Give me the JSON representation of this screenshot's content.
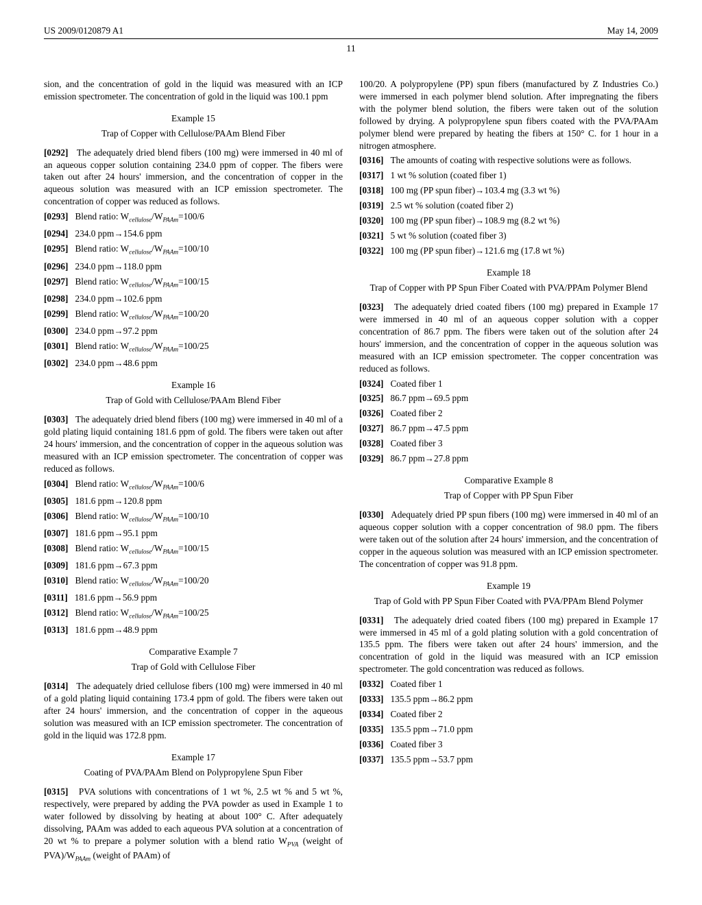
{
  "header": {
    "patent_number": "US 2009/0120879 A1",
    "date": "May 14, 2009",
    "page_number": "11"
  },
  "left": {
    "intro": "sion, and the concentration of gold in the liquid was measured with an ICP emission spectrometer. The concentration of gold in the liquid was 100.1 ppm",
    "ex15": {
      "title": "Example 15",
      "subtitle": "Trap of Copper with Cellulose/PAAm Blend Fiber",
      "p0292_num": "[0292]",
      "p0292": "The adequately dried blend fibers (100 mg) were immersed in 40 ml of an aqueous copper solution containing 234.0 ppm of copper. The fibers were taken out after 24 hours' immersion, and the concentration of copper in the aqueous solution was measured with an ICP emission spectrometer. The concentration of copper was reduced as follows.",
      "lines": [
        {
          "num": "[0293]",
          "pre": "Blend ratio: W",
          "sub1": "cellulose",
          "mid": "/W",
          "sub2": "PAAm",
          "post": "=100/6"
        },
        {
          "num": "[0294]",
          "text": "234.0 ppm→154.6 ppm"
        },
        {
          "num": "[0295]",
          "pre": "Blend ratio: W",
          "sub1": "cellulose",
          "mid": "/W",
          "sub2": "PAAm",
          "post": "=100/10"
        },
        {
          "num": "[0296]",
          "text": "234.0 ppm→118.0 ppm"
        },
        {
          "num": "[0297]",
          "pre": "Blend ratio: W",
          "sub1": "cellulose",
          "mid": "/W",
          "sub2": "PAAm",
          "post": "=100/15"
        },
        {
          "num": "[0298]",
          "text": "234.0 ppm→102.6 ppm"
        },
        {
          "num": "[0299]",
          "pre": "Blend ratio: W",
          "sub1": "cellulose",
          "mid": "/W",
          "sub2": "PAAm",
          "post": "=100/20"
        },
        {
          "num": "[0300]",
          "text": "234.0 ppm→97.2 ppm"
        },
        {
          "num": "[0301]",
          "pre": "Blend ratio: W",
          "sub1": "cellulose",
          "mid": "/W",
          "sub2": "PAAm",
          "post": "=100/25"
        },
        {
          "num": "[0302]",
          "text": "234.0 ppm→48.6 ppm"
        }
      ]
    },
    "ex16": {
      "title": "Example 16",
      "subtitle": "Trap of Gold with Cellulose/PAAm Blend Fiber",
      "p0303_num": "[0303]",
      "p0303": "The adequately dried blend fibers (100 mg) were immersed in 40 ml of a gold plating liquid containing 181.6 ppm of gold. The fibers were taken out after 24 hours' immersion, and the concentration of copper in the aqueous solution was measured with an ICP emission spectrometer. The concentration of copper was reduced as follows.",
      "lines": [
        {
          "num": "[0304]",
          "pre": "Blend ratio: W",
          "sub1": "cellulose",
          "mid": "/W",
          "sub2": "PAAm",
          "post": "=100/6"
        },
        {
          "num": "[0305]",
          "text": "181.6 ppm→120.8 ppm"
        },
        {
          "num": "[0306]",
          "pre": "Blend ratio: W",
          "sub1": "cellulose",
          "mid": "/W",
          "sub2": "PAAm",
          "post": "=100/10"
        },
        {
          "num": "[0307]",
          "text": "181.6 ppm→95.1 ppm"
        },
        {
          "num": "[0308]",
          "pre": "Blend ratio: W",
          "sub1": "cellulose",
          "mid": "/W",
          "sub2": "PAAm",
          "post": "=100/15"
        },
        {
          "num": "[0309]",
          "text": "181.6 ppm→67.3 ppm"
        },
        {
          "num": "[0310]",
          "pre": "Blend ratio: W",
          "sub1": "cellulose",
          "mid": "/W",
          "sub2": "PAAm",
          "post": "=100/20"
        },
        {
          "num": "[0311]",
          "text": "181.6 ppm→56.9 ppm"
        },
        {
          "num": "[0312]",
          "pre": "Blend ratio: W",
          "sub1": "cellulose",
          "mid": "/W",
          "sub2": "PAAm",
          "post": "=100/25"
        },
        {
          "num": "[0313]",
          "text": "181.6 ppm→48.9 ppm"
        }
      ]
    },
    "ce7": {
      "title": "Comparative Example 7",
      "subtitle": "Trap of Gold with Cellulose Fiber",
      "p0314_num": "[0314]",
      "p0314": "The adequately dried cellulose fibers (100 mg) were immersed in 40 ml of a gold plating liquid containing 173.4 ppm of gold. The fibers were taken out after 24 hours' immersion, and the concentration of copper in the aqueous solution was measured with an ICP emission spectrometer. The concentration of gold in the liquid was 172.8 ppm."
    },
    "ex17": {
      "title": "Example 17",
      "subtitle": "Coating of PVA/PAAm Blend on Polypropylene Spun Fiber",
      "p0315_num": "[0315]",
      "p0315_pre": "PVA solutions with concentrations of 1 wt %, 2.5 wt % and 5 wt %, respectively, were prepared by adding the PVA powder as used in Example 1 to water followed by dissolving by heating at about 100° C. After adequately dissolving, PAAm was added to each aqueous PVA solution at a concentration of 20 wt % to prepare a polymer solution with a blend ratio W",
      "p0315_sub1": "PVA",
      "p0315_mid": " (weight of PVA)/W",
      "p0315_sub2": "PAAm",
      "p0315_post": " (weight of PAAm) of"
    }
  },
  "right": {
    "cont": "100/20. A polypropylene (PP) spun fibers (manufactured by Z Industries Co.) were immersed in each polymer blend solution. After impregnating the fibers with the polymer blend solution, the fibers were taken out of the solution followed by drying. A polypropylene spun fibers coated with the PVA/PAAm polymer blend were prepared by heating the fibers at 150° C. for 1 hour in a nitrogen atmosphere.",
    "p0316_num": "[0316]",
    "p0316": "The amounts of coating with respective solutions were as follows.",
    "lines17": [
      {
        "num": "[0317]",
        "text": "1 wt % solution (coated fiber 1)"
      },
      {
        "num": "[0318]",
        "text": "100 mg (PP spun fiber)→103.4 mg (3.3 wt %)"
      },
      {
        "num": "[0319]",
        "text": "2.5 wt % solution (coated fiber 2)"
      },
      {
        "num": "[0320]",
        "text": "100 mg (PP spun fiber)→108.9 mg (8.2 wt %)"
      },
      {
        "num": "[0321]",
        "text": "5 wt % solution (coated fiber 3)"
      },
      {
        "num": "[0322]",
        "text": "100 mg (PP spun fiber)→121.6 mg (17.8 wt %)"
      }
    ],
    "ex18": {
      "title": "Example 18",
      "subtitle": "Trap of Copper with PP Spun Fiber Coated with PVA/PPAm Polymer Blend",
      "p0323_num": "[0323]",
      "p0323": "The adequately dried coated fibers (100 mg) prepared in Example 17 were immersed in 40 ml of an aqueous copper solution with a copper concentration of 86.7 ppm. The fibers were taken out of the solution after 24 hours' immersion, and the concentration of copper in the aqueous solution was measured with an ICP emission spectrometer. The copper concentration was reduced as follows.",
      "lines": [
        {
          "num": "[0324]",
          "text": "Coated fiber 1"
        },
        {
          "num": "[0325]",
          "text": "86.7 ppm→69.5 ppm"
        },
        {
          "num": "[0326]",
          "text": "Coated fiber 2"
        },
        {
          "num": "[0327]",
          "text": "86.7 ppm→47.5 ppm"
        },
        {
          "num": "[0328]",
          "text": "Coated fiber 3"
        },
        {
          "num": "[0329]",
          "text": "86.7 ppm→27.8 ppm"
        }
      ]
    },
    "ce8": {
      "title": "Comparative Example 8",
      "subtitle": "Trap of Copper with PP Spun Fiber",
      "p0330_num": "[0330]",
      "p0330": "Adequately dried PP spun fibers (100 mg) were immersed in 40 ml of an aqueous copper solution with a copper concentration of 98.0 ppm. The fibers were taken out of the solution after 24 hours' immersion, and the concentration of copper in the aqueous solution was measured with an ICP emission spectrometer. The concentration of copper was 91.8 ppm."
    },
    "ex19": {
      "title": "Example 19",
      "subtitle": "Trap of Gold with PP Spun Fiber Coated with PVA/PPAm Blend Polymer",
      "p0331_num": "[0331]",
      "p0331": "The adequately dried coated fibers (100 mg) prepared in Example 17 were immersed in 45 ml of a gold plating solution with a gold concentration of 135.5 ppm. The fibers were taken out after 24 hours' immersion, and the concentration of gold in the liquid was measured with an ICP emission spectrometer. The gold concentration was reduced as follows.",
      "lines": [
        {
          "num": "[0332]",
          "text": "Coated fiber 1"
        },
        {
          "num": "[0333]",
          "text": "135.5 ppm→86.2 ppm"
        },
        {
          "num": "[0334]",
          "text": "Coated fiber 2"
        },
        {
          "num": "[0335]",
          "text": "135.5 ppm→71.0 ppm"
        },
        {
          "num": "[0336]",
          "text": "Coated fiber 3"
        },
        {
          "num": "[0337]",
          "text": "135.5 ppm→53.7 ppm"
        }
      ]
    }
  }
}
